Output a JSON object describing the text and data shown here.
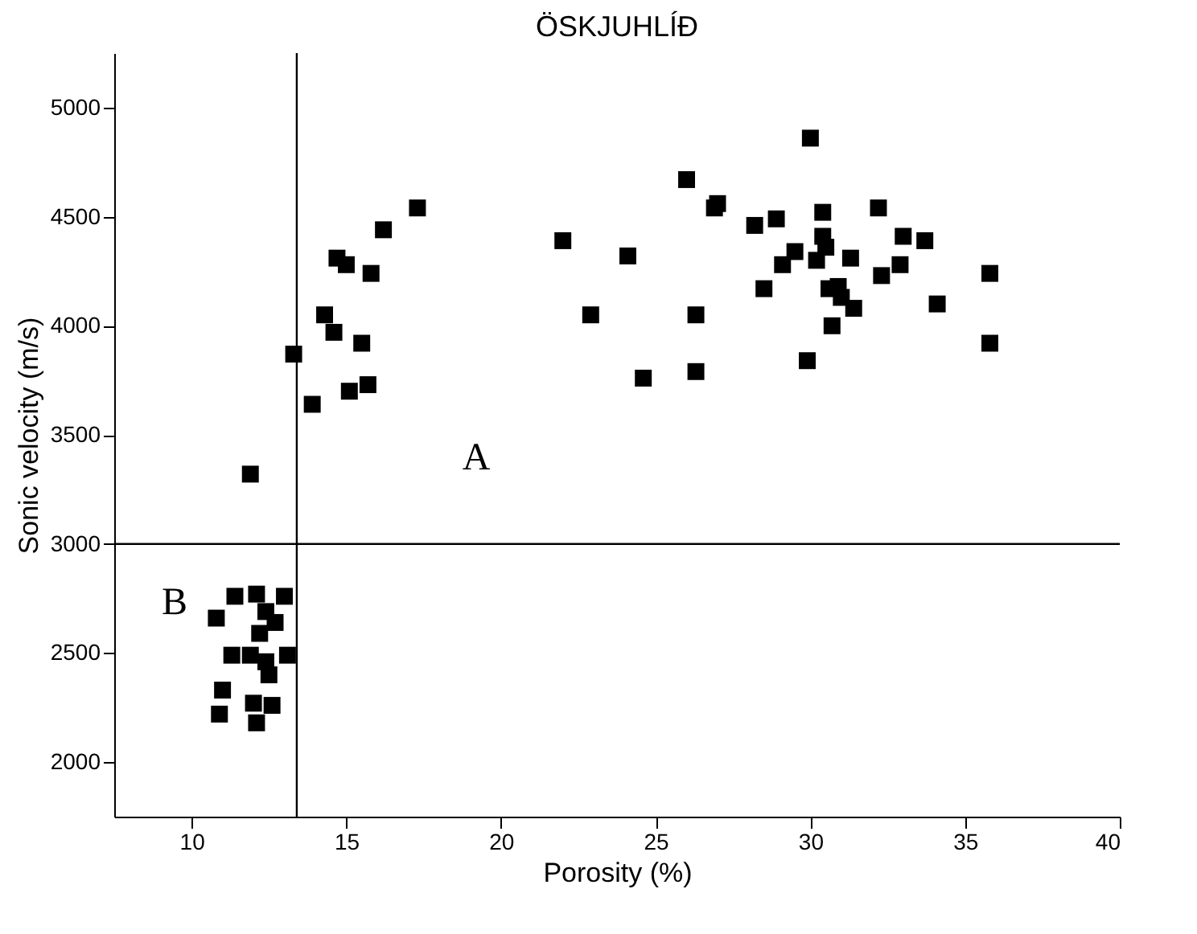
{
  "chart_data": {
    "type": "scatter",
    "title": "ÖSKJUHLÍÐ",
    "xlabel": "Porosity (%)",
    "ylabel": "Sonic velocity (m/s)",
    "x": [
      17.3,
      16.2,
      14.7,
      15.0,
      15.8,
      14.3,
      14.6,
      15.5,
      13.3,
      15.1,
      15.7,
      13.9,
      11.9,
      30.0,
      26.0,
      27.0,
      26.9,
      22.0,
      24.1,
      28.2,
      28.9,
      30.4,
      32.2,
      33.0,
      33.7,
      30.4,
      30.5,
      29.5,
      29.1,
      30.2,
      31.3,
      32.3,
      32.9,
      35.8,
      28.5,
      30.6,
      30.9,
      31.0,
      31.4,
      30.7,
      34.1,
      22.9,
      26.3,
      35.8,
      29.9,
      24.6,
      26.3,
      10.8,
      11.4,
      12.1,
      13.0,
      12.4,
      12.7,
      12.2,
      11.3,
      11.9,
      13.1,
      12.4,
      12.5,
      11.0,
      10.9,
      12.0,
      12.6,
      12.1
    ],
    "series": [
      {
        "color": "#000000",
        "values": [
          4540,
          4440,
          4310,
          4280,
          4240,
          4050,
          3970,
          3920,
          3870,
          3700,
          3730,
          3640,
          3320,
          4860,
          4670,
          4560,
          4540,
          4390,
          4320,
          4460,
          4490,
          4520,
          4540,
          4410,
          4390,
          4410,
          4360,
          4340,
          4280,
          4300,
          4310,
          4230,
          4280,
          4240,
          4170,
          4170,
          4180,
          4130,
          4080,
          4000,
          4100,
          4050,
          4050,
          3920,
          3840,
          3760,
          3790,
          2660,
          2760,
          2770,
          2760,
          2690,
          2640,
          2590,
          2490,
          2490,
          2490,
          2460,
          2400,
          2330,
          2220,
          2270,
          2260,
          2180
        ]
      }
    ],
    "xlim": [
      7.5,
      40
    ],
    "xticks": [
      10,
      15,
      20,
      25,
      30,
      35,
      40
    ],
    "ylim": [
      1750,
      5250
    ],
    "yticks": [
      2000,
      2500,
      3000,
      3500,
      4000,
      4500,
      5000
    ],
    "marker": "square",
    "ref_lines": [
      {
        "axis": "x",
        "value": 13.4
      },
      {
        "axis": "y",
        "value": 3000
      }
    ],
    "annotations": [
      "A",
      "B"
    ]
  }
}
